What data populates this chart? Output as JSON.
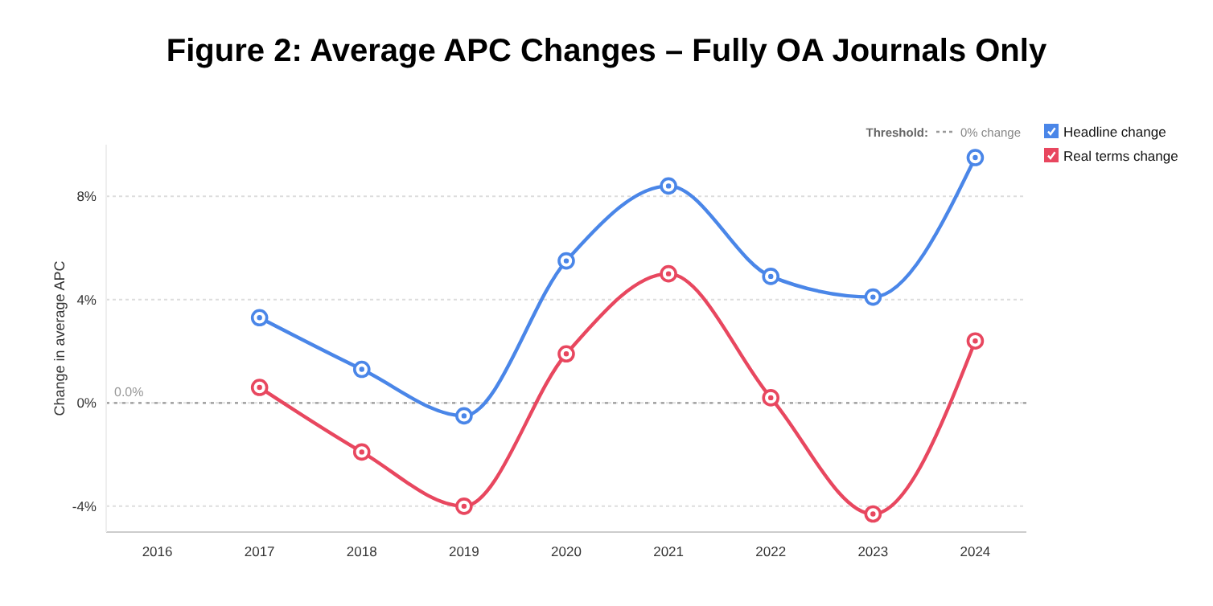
{
  "chart_data": {
    "type": "line",
    "title": "Figure 2: Average APC Changes – Fully OA Journals Only",
    "ylabel": "Change in average APC",
    "categories": [
      "2016",
      "2017",
      "2018",
      "2019",
      "2020",
      "2021",
      "2022",
      "2023",
      "2024"
    ],
    "series": [
      {
        "name": "Headline change",
        "color": "#4a86e8",
        "values": [
          null,
          3.3,
          1.3,
          -0.5,
          5.5,
          8.4,
          4.9,
          4.1,
          9.5
        ]
      },
      {
        "name": "Real terms change",
        "color": "#e8475f",
        "values": [
          null,
          0.6,
          -1.9,
          -4.0,
          1.9,
          5.0,
          0.2,
          -4.3,
          2.4
        ]
      }
    ],
    "ylim": [
      -5,
      10
    ],
    "yticks": [
      {
        "value": -4,
        "label": "-4%"
      },
      {
        "value": 0,
        "label": "0%"
      },
      {
        "value": 4,
        "label": "4%"
      },
      {
        "value": 8,
        "label": "8%"
      }
    ],
    "grid": "y",
    "legend": "top right",
    "marker": "circle",
    "line_style": "solid",
    "ref_lines": [
      {
        "axis": "y",
        "value": 0,
        "label": "0.0%",
        "color": "#999999",
        "line_style": "dotted"
      }
    ],
    "annotations": [
      "Threshold:",
      "0% change"
    ]
  }
}
